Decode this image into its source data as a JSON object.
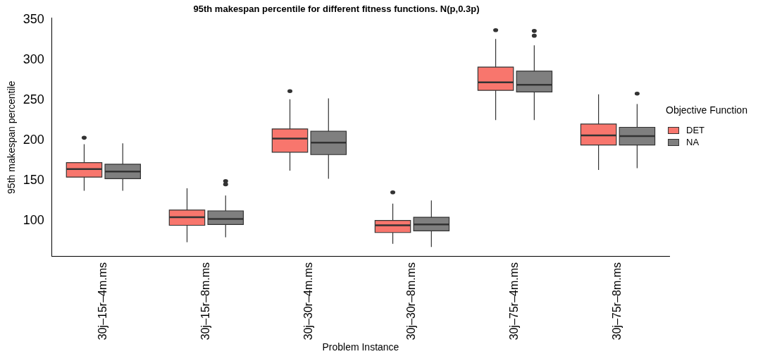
{
  "chart_data": {
    "type": "box",
    "title": "95th makespan percentile for different fitness functions. N(p,0.3p)",
    "xlabel": "Problem Instance",
    "ylabel": "95th makespan percentile",
    "legend_title": "Objective Function",
    "legend": "right",
    "grid": false,
    "categories": [
      "30j–15r–4m.ms",
      "30j–15r–8m.ms",
      "30j–30r–4m.ms",
      "30j–30r–8m.ms",
      "30j–75r–4m.ms",
      "30j–75r–8m.ms"
    ],
    "ylim": [
      55,
      352
    ],
    "yticks": [
      100,
      150,
      200,
      250,
      300,
      350
    ],
    "series": [
      {
        "name": "DET",
        "color": "#f8766d",
        "boxes": [
          {
            "low": 137,
            "q1": 154,
            "median": 164,
            "q3": 172,
            "high": 195,
            "outliers": [
              203
            ]
          },
          {
            "low": 73,
            "q1": 94,
            "median": 104,
            "q3": 113,
            "high": 140
          },
          {
            "low": 162,
            "q1": 185,
            "median": 202,
            "q3": 214,
            "high": 251,
            "outliers": [
              261
            ]
          },
          {
            "low": 71,
            "q1": 85,
            "median": 94,
            "q3": 100,
            "high": 121,
            "outliers": [
              135
            ]
          },
          {
            "low": 225,
            "q1": 262,
            "median": 272,
            "q3": 291,
            "high": 326,
            "outliers": [
              337
            ]
          },
          {
            "low": 163,
            "q1": 194,
            "median": 206,
            "q3": 220,
            "high": 257
          }
        ]
      },
      {
        "name": "NA",
        "color": "#7f7f7f",
        "boxes": [
          {
            "low": 137,
            "q1": 152,
            "median": 161,
            "q3": 170,
            "high": 196
          },
          {
            "low": 79,
            "q1": 95,
            "median": 102,
            "q3": 112,
            "high": 131,
            "outliers": [
              145,
              149
            ]
          },
          {
            "low": 152,
            "q1": 182,
            "median": 197,
            "q3": 211,
            "high": 252
          },
          {
            "low": 67,
            "q1": 87,
            "median": 95,
            "q3": 104,
            "high": 125
          },
          {
            "low": 225,
            "q1": 260,
            "median": 269,
            "q3": 286,
            "high": 318,
            "outliers": [
              330,
              336
            ]
          },
          {
            "low": 165,
            "q1": 194,
            "median": 205,
            "q3": 216,
            "high": 245,
            "outliers": [
              258
            ]
          }
        ]
      }
    ]
  }
}
